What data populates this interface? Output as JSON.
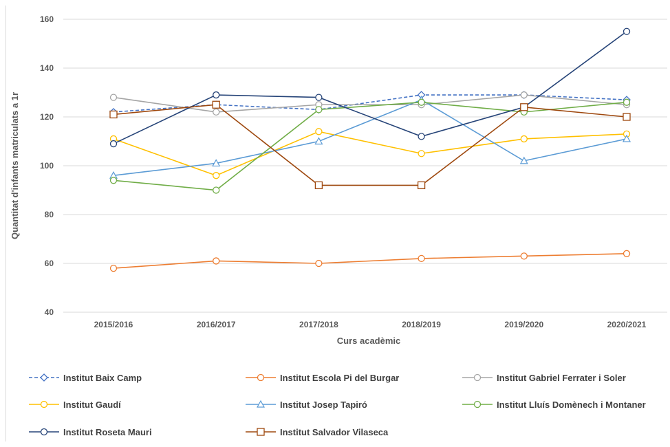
{
  "chart_data": {
    "type": "line",
    "title": "",
    "xlabel": "Curs acadèmic",
    "ylabel": "Quantitat d'infants matriculats a 1r",
    "ylim": [
      40,
      160
    ],
    "yticks": [
      40,
      60,
      80,
      100,
      120,
      140,
      160
    ],
    "grid": true,
    "legend_position": "bottom",
    "categories": [
      "2015/2016",
      "2016/2017",
      "2017/2018",
      "2018/2019",
      "2019/2020",
      "2020/2021"
    ],
    "series": [
      {
        "name": "Institut Baix Camp",
        "values": [
          122,
          125,
          123,
          129,
          129,
          127
        ],
        "color": "#4472C4",
        "marker": "diamond",
        "dash": true
      },
      {
        "name": "Institut Escola Pi del Burgar",
        "values": [
          58,
          61,
          60,
          62,
          63,
          64
        ],
        "color": "#ED7D31",
        "marker": "circle",
        "dash": false
      },
      {
        "name": "Institut Gabriel Ferrater i Soler",
        "values": [
          128,
          122,
          125,
          125,
          129,
          125
        ],
        "color": "#A5A5A5",
        "marker": "circle",
        "dash": false
      },
      {
        "name": "Institut Gaudí",
        "values": [
          111,
          96,
          114,
          105,
          111,
          113
        ],
        "color": "#FFC000",
        "marker": "circle",
        "dash": false
      },
      {
        "name": "Institut Josep Tapiró",
        "values": [
          96,
          101,
          110,
          127,
          102,
          111
        ],
        "color": "#5B9BD5",
        "marker": "triangle",
        "dash": false
      },
      {
        "name": "Institut Lluís Domènech i Montaner",
        "values": [
          94,
          90,
          123,
          126,
          122,
          126
        ],
        "color": "#70AD47",
        "marker": "circle",
        "dash": false
      },
      {
        "name": "Institut Roseta Mauri",
        "values": [
          109,
          129,
          128,
          112,
          124,
          155
        ],
        "color": "#264478",
        "marker": "circle",
        "dash": false
      },
      {
        "name": "Institut Salvador Vilaseca",
        "values": [
          121,
          125,
          92,
          92,
          124,
          120
        ],
        "color": "#9E480E",
        "marker": "square",
        "dash": false
      }
    ]
  }
}
